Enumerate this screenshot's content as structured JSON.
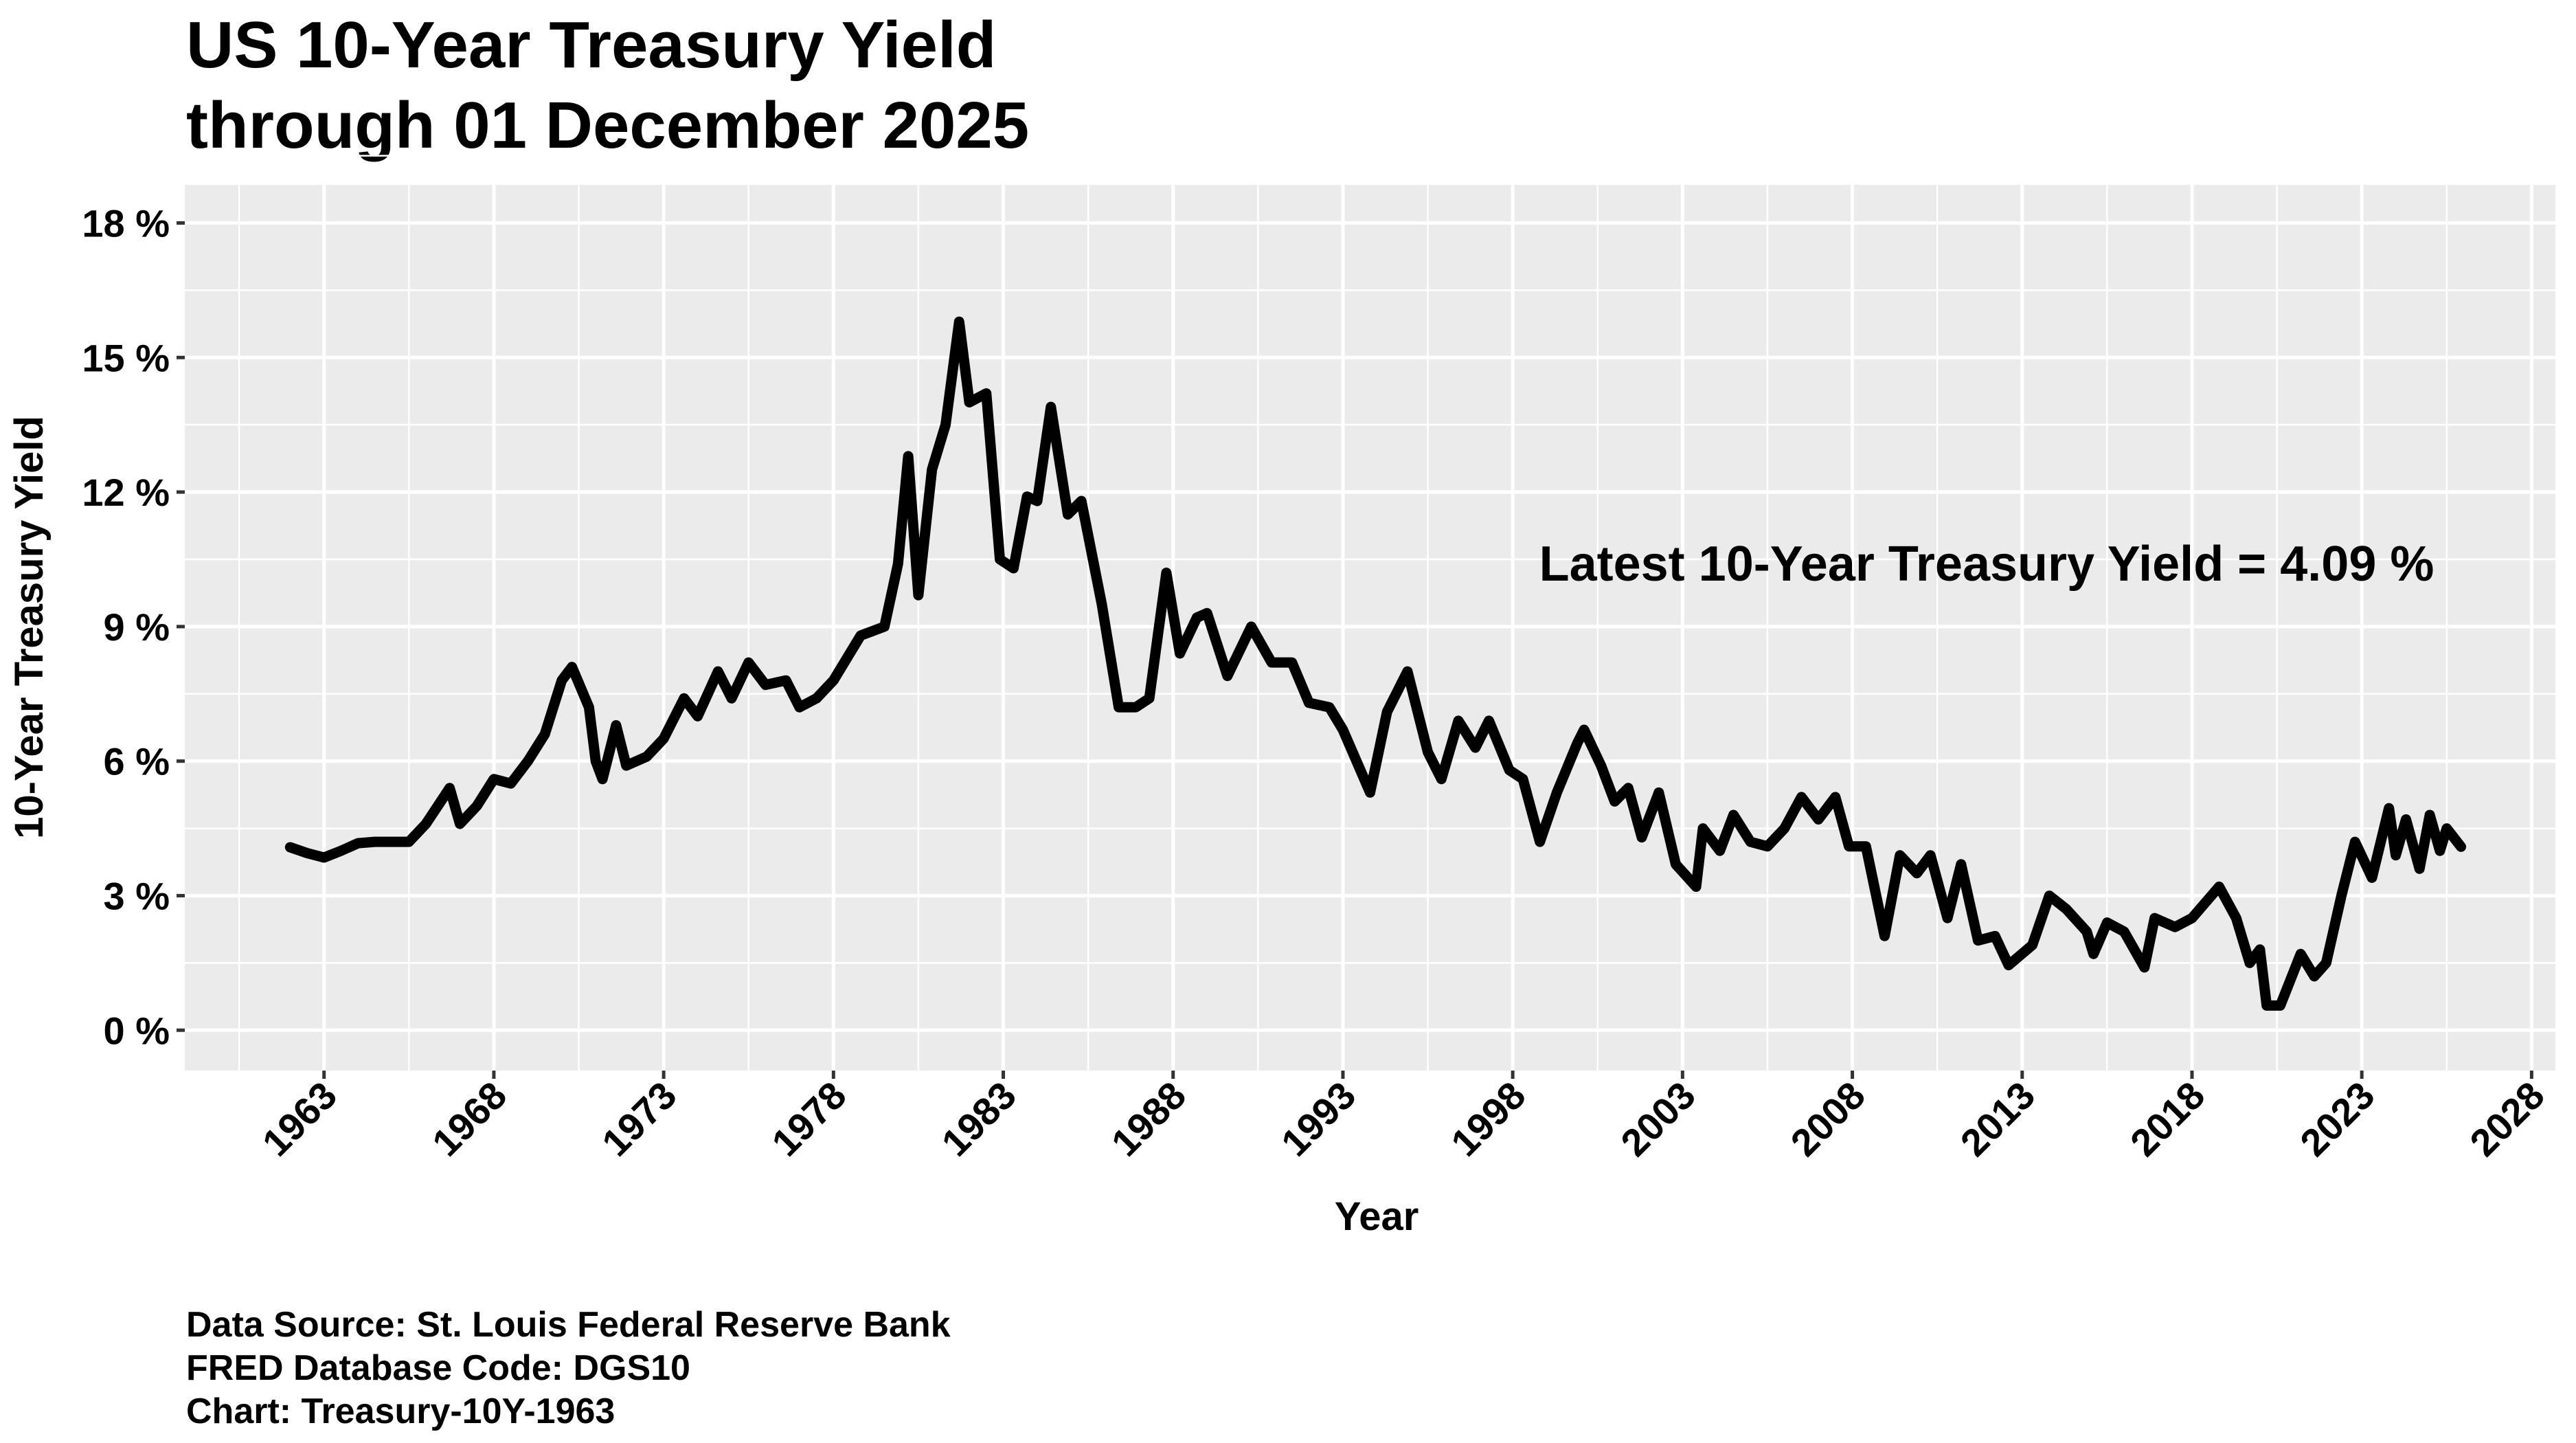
{
  "chart_data": {
    "type": "line",
    "title_line1": "US 10-Year Treasury Yield",
    "title_line2": "through 01 December 2025",
    "xlabel": "Year",
    "ylabel": "10-Year Treasury Yield",
    "xlim": [
      1958.9,
      2028.7
    ],
    "ylim": [
      -0.9,
      18.85
    ],
    "x_ticks": [
      "1963",
      "1968",
      "1973",
      "1978",
      "1983",
      "1988",
      "1993",
      "1998",
      "2003",
      "2008",
      "2013",
      "2018",
      "2023",
      "2028"
    ],
    "y_ticks": [
      "0 %",
      "3 %",
      "6 %",
      "9 %",
      "12 %",
      "15 %",
      "18 %"
    ],
    "grid": true,
    "annotation": "Latest 10-Year Treasury Yield = 4.09 %",
    "line_color": "#000000",
    "panel_color": "#EBEBEB",
    "x": [
      1962.0,
      1962.5,
      1963.0,
      1963.5,
      1964.0,
      1964.5,
      1965.0,
      1965.5,
      1966.0,
      1966.7,
      1967.0,
      1967.5,
      1968.0,
      1968.5,
      1969.0,
      1969.5,
      1970.0,
      1970.3,
      1970.8,
      1971.0,
      1971.2,
      1971.6,
      1971.9,
      1972.5,
      1973.0,
      1973.6,
      1974.0,
      1974.6,
      1975.0,
      1975.5,
      1976.0,
      1976.6,
      1977.0,
      1977.5,
      1978.0,
      1978.8,
      1979.5,
      1979.9,
      1980.2,
      1980.5,
      1980.9,
      1981.3,
      1981.7,
      1982.0,
      1982.5,
      1982.9,
      1983.3,
      1983.7,
      1984.0,
      1984.4,
      1984.9,
      1985.3,
      1985.9,
      1986.4,
      1986.9,
      1987.3,
      1987.8,
      1988.2,
      1988.7,
      1989.0,
      1989.6,
      1990.3,
      1990.9,
      1991.5,
      1992.0,
      1992.6,
      1993.0,
      1993.8,
      1994.3,
      1994.9,
      1995.5,
      1995.9,
      1996.4,
      1996.9,
      1997.3,
      1997.9,
      1998.3,
      1998.8,
      1999.3,
      1999.9,
      2000.1,
      2000.6,
      2001.0,
      2001.4,
      2001.8,
      2002.3,
      2002.8,
      2003.4,
      2003.6,
      2004.1,
      2004.5,
      2005.0,
      2005.5,
      2006.0,
      2006.5,
      2007.0,
      2007.5,
      2007.9,
      2008.4,
      2008.95,
      2009.4,
      2009.9,
      2010.3,
      2010.8,
      2011.2,
      2011.7,
      2012.2,
      2012.6,
      2013.3,
      2013.8,
      2014.3,
      2014.9,
      2015.1,
      2015.5,
      2016.0,
      2016.6,
      2016.9,
      2017.5,
      2018.0,
      2018.8,
      2019.3,
      2019.7,
      2020.0,
      2020.2,
      2020.6,
      2021.2,
      2021.6,
      2021.95,
      2022.4,
      2022.8,
      2023.3,
      2023.8,
      2024.0,
      2024.3,
      2024.7,
      2025.0,
      2025.3,
      2025.5,
      2025.92
    ],
    "values": [
      4.08,
      3.95,
      3.85,
      4.0,
      4.17,
      4.2,
      4.2,
      4.2,
      4.6,
      5.4,
      4.6,
      5.0,
      5.6,
      5.5,
      6.0,
      6.6,
      7.8,
      8.1,
      7.2,
      6.0,
      5.6,
      6.8,
      5.9,
      6.1,
      6.5,
      7.4,
      7.0,
      8.0,
      7.4,
      8.2,
      7.7,
      7.8,
      7.2,
      7.4,
      7.8,
      8.8,
      9.0,
      10.4,
      12.8,
      9.7,
      12.5,
      13.5,
      15.8,
      14.0,
      14.2,
      10.5,
      10.3,
      11.9,
      11.8,
      13.9,
      11.5,
      11.8,
      9.5,
      7.2,
      7.2,
      7.4,
      10.2,
      8.4,
      9.2,
      9.3,
      7.9,
      9.0,
      8.2,
      8.2,
      7.3,
      7.2,
      6.7,
      5.3,
      7.1,
      8.0,
      6.2,
      5.6,
      6.9,
      6.3,
      6.9,
      5.8,
      5.6,
      4.2,
      5.3,
      6.4,
      6.7,
      5.9,
      5.1,
      5.4,
      4.3,
      5.3,
      3.7,
      3.2,
      4.5,
      4.0,
      4.8,
      4.2,
      4.1,
      4.5,
      5.2,
      4.7,
      5.2,
      4.1,
      4.1,
      2.1,
      3.9,
      3.5,
      3.9,
      2.5,
      3.7,
      2.0,
      2.1,
      1.45,
      1.9,
      3.0,
      2.7,
      2.2,
      1.7,
      2.4,
      2.2,
      1.4,
      2.5,
      2.3,
      2.5,
      3.2,
      2.5,
      1.5,
      1.8,
      0.55,
      0.55,
      1.7,
      1.2,
      1.5,
      3.0,
      4.2,
      3.4,
      4.95,
      3.9,
      4.7,
      3.6,
      4.8,
      4.0,
      4.5,
      4.09
    ]
  },
  "caption": {
    "line1": "Data Source: St. Louis Federal Reserve Bank",
    "line2": "FRED Database Code: DGS10",
    "line3": "Chart: Treasury-10Y-1963"
  }
}
